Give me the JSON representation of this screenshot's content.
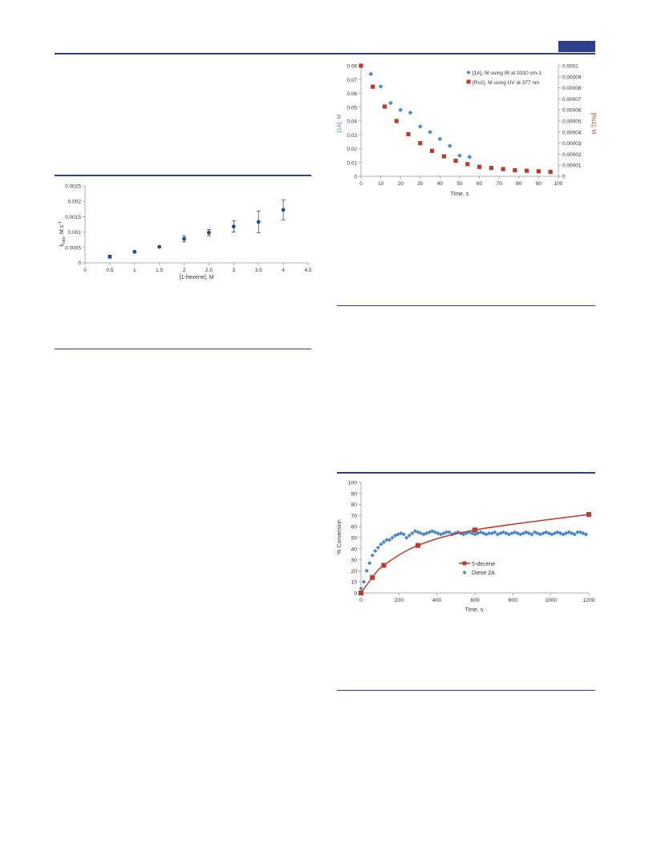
{
  "page": {
    "accent_color": "#2e3f8f"
  },
  "chart_data": [
    {
      "type": "scatter",
      "id": "kobs-vs-hexene",
      "title": "",
      "xlabel": "[1-hexene], M",
      "ylabel_main": "k",
      "ylabel_sub": "obs",
      "ylabel_rest": ", M s",
      "ylabel_sup": "-1",
      "xlim": [
        0,
        4.5
      ],
      "ylim": [
        0,
        0.0025
      ],
      "x_ticks": [
        "0",
        "0.5",
        "1",
        "1.5",
        "2",
        "2.5",
        "3",
        "3.5",
        "4",
        "4.5"
      ],
      "y_ticks": [
        "0",
        "0.0005",
        "0.001",
        "0.0015",
        "0.002",
        "0.0025"
      ],
      "series": [
        {
          "color": "#1f4e8c",
          "points": [
            {
              "x": 0.5,
              "y": 0.0002,
              "err": 5e-05
            },
            {
              "x": 1.0,
              "y": 0.00036,
              "err": 0.0
            },
            {
              "x": 1.5,
              "y": 0.00052,
              "err": 0.0
            },
            {
              "x": 2.0,
              "y": 0.00078,
              "err": 0.0001
            },
            {
              "x": 2.5,
              "y": 0.00098,
              "err": 0.0001
            },
            {
              "x": 3.0,
              "y": 0.00118,
              "err": 0.00018
            },
            {
              "x": 3.5,
              "y": 0.00133,
              "err": 0.00035
            },
            {
              "x": 4.0,
              "y": 0.00172,
              "err": 0.00032
            }
          ]
        }
      ]
    },
    {
      "type": "scatter",
      "id": "decay-ir-uv",
      "title": "",
      "xlabel": "Time, s",
      "ylabel_left": "[1A], M",
      "ylabel_right": "[Ru1], M",
      "xlim": [
        0,
        100
      ],
      "ylim": [
        0,
        0.08
      ],
      "ylim_right": [
        0,
        0.0001
      ],
      "x_ticks": [
        "0",
        "10",
        "20",
        "30",
        "40",
        "50",
        "60",
        "70",
        "80",
        "90",
        "100"
      ],
      "y_ticks": [
        "0",
        "0.01",
        "0.02",
        "0.03",
        "0.04",
        "0.05",
        "0.06",
        "0.07",
        "0.08"
      ],
      "y_ticks_right": [
        "0",
        "0.00001",
        "0.00002",
        "0.00003",
        "0.00004",
        "0.00005",
        "0.00006",
        "0.00007",
        "0.00008",
        "0.00009",
        "0.0001"
      ],
      "legend_position": "top-right",
      "series": [
        {
          "name": "[1A], M using IR at 3310 cm-1",
          "axis": "left",
          "marker": "diamond",
          "color": "#4a86c8",
          "x": [
            0,
            5,
            10,
            15,
            20,
            25,
            30,
            35,
            40,
            45,
            50,
            55
          ],
          "y": [
            0.08,
            0.074,
            0.065,
            0.053,
            0.048,
            0.046,
            0.036,
            0.032,
            0.027,
            0.022,
            0.015,
            0.014
          ]
        },
        {
          "name": "[Ru1], M using UV at 377 nm",
          "axis": "right",
          "marker": "square",
          "color": "#c0392b",
          "x": [
            0,
            6,
            12,
            18,
            24,
            30,
            36,
            42,
            48,
            54,
            60,
            66,
            72,
            78,
            84,
            90,
            96
          ],
          "y": [
            0.0001,
            8.1e-05,
            6.3e-05,
            5e-05,
            3.8e-05,
            3e-05,
            2.3e-05,
            1.8e-05,
            1.4e-05,
            1.1e-05,
            8.5e-06,
            7.5e-06,
            6.5e-06,
            5.5e-06,
            5e-06,
            4.5e-06,
            4e-06
          ]
        }
      ]
    },
    {
      "type": "scatter",
      "id": "conversion-vs-time",
      "title": "",
      "xlabel": "Time, s",
      "ylabel": "% Conversion",
      "xlim": [
        0,
        1200
      ],
      "ylim": [
        0,
        100
      ],
      "x_ticks": [
        "0",
        "200",
        "400",
        "600",
        "800",
        "1000",
        "1200"
      ],
      "y_ticks": [
        "0",
        "10",
        "20",
        "30",
        "40",
        "50",
        "60",
        "70",
        "80",
        "90",
        "100"
      ],
      "legend_position": "center-right",
      "series": [
        {
          "name": "5-decene",
          "marker": "square",
          "color": "#c0392b",
          "fit_line": true,
          "x": [
            0,
            60,
            120,
            300,
            600,
            1200
          ],
          "y": [
            0,
            14,
            25,
            43,
            57,
            71
          ]
        },
        {
          "name": "Diene 2A",
          "marker": "diamond",
          "color": "#4a86c8",
          "x": [
            0,
            15,
            30,
            45,
            60,
            75,
            90,
            105,
            120,
            135,
            150,
            165,
            180,
            195,
            210,
            225,
            240,
            255,
            270,
            285,
            300,
            315,
            330,
            345,
            360,
            375,
            390,
            405,
            420,
            435,
            450,
            465,
            480,
            495,
            510,
            525,
            540,
            555,
            570,
            585,
            600,
            615,
            630,
            645,
            660,
            675,
            690,
            705,
            720,
            735,
            750,
            765,
            780,
            795,
            810,
            825,
            840,
            855,
            870,
            885,
            900,
            915,
            930,
            945,
            960,
            975,
            990,
            1005,
            1020,
            1035,
            1050,
            1065,
            1080,
            1095,
            1110,
            1125,
            1140,
            1155,
            1170,
            1185
          ],
          "y": [
            4,
            10,
            20,
            27,
            34,
            38,
            41,
            44,
            46,
            48,
            48,
            50,
            52,
            53,
            54,
            53,
            50,
            52,
            54,
            56,
            55,
            54,
            53,
            54,
            55,
            56,
            55,
            54,
            53,
            54,
            55,
            55,
            53,
            54,
            55,
            54,
            53,
            54,
            55,
            54,
            53,
            54,
            55,
            54,
            53,
            54,
            54,
            55,
            53,
            54,
            55,
            54,
            53,
            54,
            55,
            54,
            53,
            54,
            55,
            54,
            53,
            55,
            54,
            53,
            54,
            55,
            54,
            53,
            54,
            55,
            54,
            53,
            54,
            55,
            54,
            53,
            55,
            55,
            54,
            53
          ]
        }
      ]
    }
  ]
}
